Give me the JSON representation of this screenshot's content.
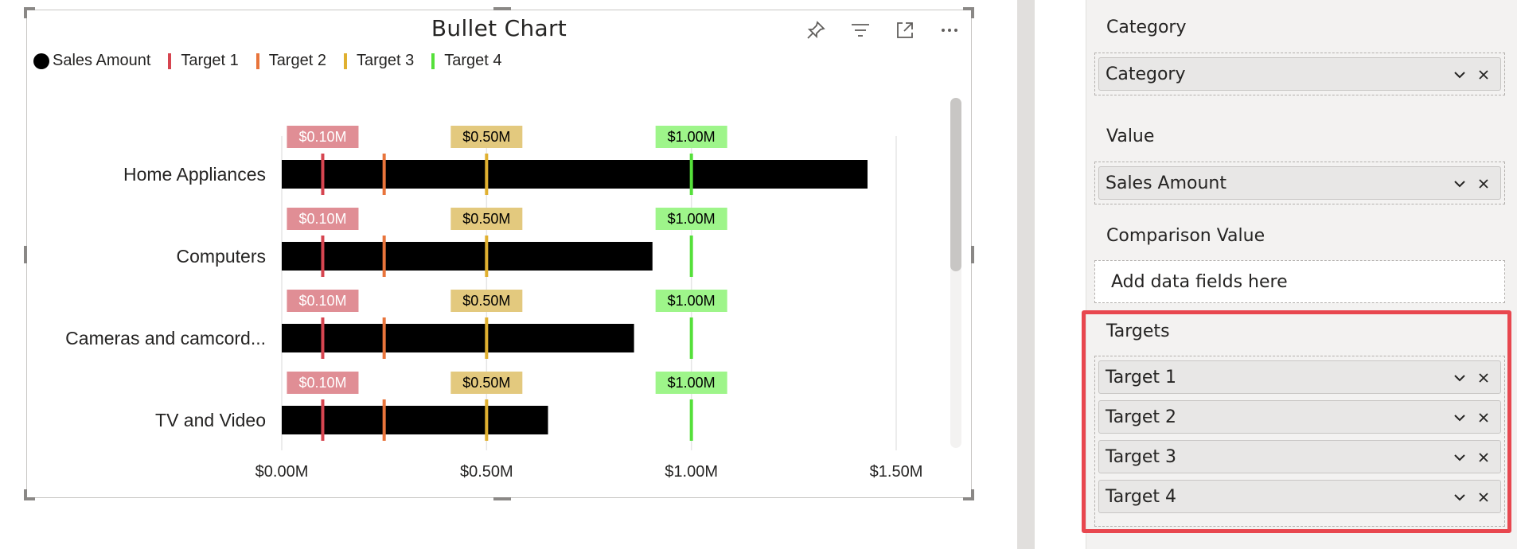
{
  "visual": {
    "title": "Bullet Chart",
    "header_icons": [
      "pin-icon",
      "filter-icon",
      "focus-mode-icon",
      "more-options-icon"
    ]
  },
  "legend": [
    {
      "label": "Sales Amount",
      "color": "#000000",
      "shape": "dot"
    },
    {
      "label": "Target 1",
      "color": "#d64550",
      "shape": "tick"
    },
    {
      "label": "Target 2",
      "color": "#e8743b",
      "shape": "tick"
    },
    {
      "label": "Target 3",
      "color": "#e0b030",
      "shape": "tick"
    },
    {
      "label": "Target 4",
      "color": "#55e03a",
      "shape": "tick"
    }
  ],
  "chart_data": {
    "type": "bar",
    "orientation": "horizontal",
    "categories": [
      "Home Appliances",
      "Computers",
      "Cameras and camcord...",
      "TV and Video"
    ],
    "series": [
      {
        "name": "Sales Amount",
        "values": [
          1.43,
          0.905,
          0.86,
          0.65
        ],
        "color": "#000000"
      }
    ],
    "targets": [
      {
        "name": "Target 1",
        "value": 0.1,
        "color": "#d64550"
      },
      {
        "name": "Target 2",
        "value": 0.25,
        "color": "#e8743b"
      },
      {
        "name": "Target 3",
        "value": 0.5,
        "color": "#e0b030"
      },
      {
        "name": "Target 4",
        "value": 1.0,
        "color": "#55e03a"
      }
    ],
    "target_labels": [
      {
        "text": "$0.10M",
        "value": 0.1,
        "bg": "#e08e95",
        "fg": "#ffffff"
      },
      {
        "text": "$0.50M",
        "value": 0.5,
        "bg": "#e3c97e",
        "fg": "#000000"
      },
      {
        "text": "$1.00M",
        "value": 1.0,
        "bg": "#9ef58a",
        "fg": "#000000"
      }
    ],
    "x_ticks": [
      {
        "value": 0.0,
        "label": "$0.00M"
      },
      {
        "value": 0.5,
        "label": "$0.50M"
      },
      {
        "value": 1.0,
        "label": "$1.00M"
      },
      {
        "value": 1.5,
        "label": "$1.50M"
      }
    ],
    "xlim": [
      0,
      1.5
    ],
    "units": "$M"
  },
  "fields_pane": {
    "wells": [
      {
        "label": "Category",
        "fields": [
          "Category"
        ]
      },
      {
        "label": "Value",
        "fields": [
          "Sales Amount"
        ]
      },
      {
        "label": "Comparison Value",
        "fields": [],
        "placeholder": "Add data fields here"
      },
      {
        "label": "Targets",
        "fields": [
          "Target 1",
          "Target 2",
          "Target 3",
          "Target 4"
        ]
      }
    ],
    "highlight_color": "#e8474f"
  }
}
